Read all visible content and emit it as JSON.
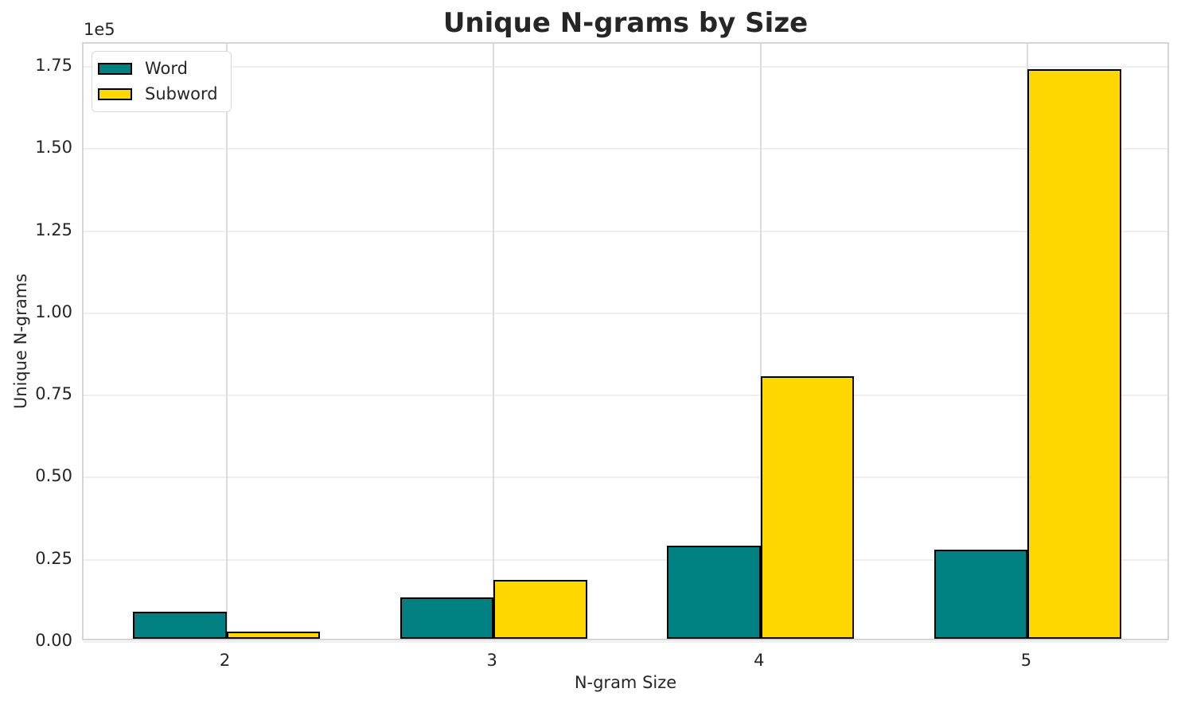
{
  "chart_data": {
    "type": "bar",
    "title": "Unique N-grams by Size",
    "xlabel": "N-gram Size",
    "ylabel": "Unique N-grams",
    "y_offset_text": "1e5",
    "categories": [
      "2",
      "3",
      "4",
      "5"
    ],
    "series": [
      {
        "name": "Word",
        "color": "#008080",
        "values": [
          8200,
          12700,
          28400,
          27200
        ]
      },
      {
        "name": "Subword",
        "color": "#ffd700",
        "values": [
          2100,
          18000,
          79900,
          173300
        ]
      }
    ],
    "bar_width": 0.35,
    "bar_edge_color": "#000000",
    "xlim": [
      -0.535,
      3.535
    ],
    "ylim": [
      0,
      182000
    ],
    "yticks": [
      0,
      25000,
      50000,
      75000,
      100000,
      125000,
      150000,
      175000
    ],
    "ytick_labels": [
      "0.00",
      "0.25",
      "0.50",
      "0.75",
      "1.00",
      "1.25",
      "1.50",
      "1.75"
    ],
    "grid": true,
    "legend_position": "upper left"
  },
  "style": {
    "teal": "#008080",
    "gold": "#ffd700",
    "text_color": "#262626",
    "grid_color_h": "#efefef",
    "grid_color_v": "#dcdcdc",
    "spine_color": "#d5d5d5",
    "background": "#ffffff"
  }
}
